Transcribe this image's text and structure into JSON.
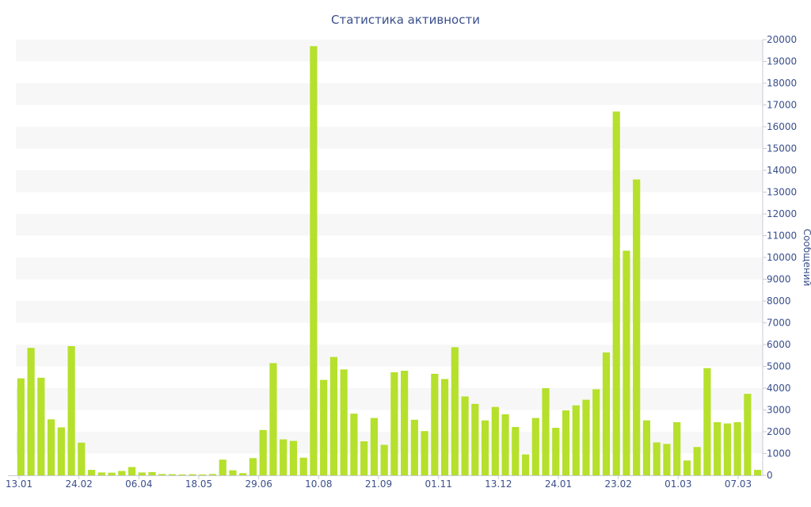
{
  "chart_data": {
    "type": "bar",
    "title": "Статистика активности",
    "ylabel": "Сообщений",
    "xlabel": "",
    "ylim": [
      0,
      20000
    ],
    "y_ticks": [
      0,
      1000,
      2000,
      3000,
      4000,
      5000,
      6000,
      7000,
      8000,
      9000,
      10000,
      11000,
      12000,
      13000,
      14000,
      15000,
      16000,
      17000,
      18000,
      19000,
      20000
    ],
    "x_tick_labels": [
      "13.01",
      "24.02",
      "06.04",
      "18.05",
      "29.06",
      "10.08",
      "21.09",
      "01.11",
      "13.12",
      "24.01",
      "23.02",
      "01.03",
      "07.03"
    ],
    "bar_color": "#b5e02c",
    "band_color": "#f7f7f7",
    "text_color": "#3a4f8c",
    "grid": "alternating horizontal bands",
    "y_axis_position": "right",
    "values": [
      4450,
      5850,
      4480,
      2570,
      2200,
      5930,
      1500,
      250,
      130,
      120,
      200,
      380,
      130,
      150,
      60,
      50,
      40,
      50,
      40,
      60,
      720,
      230,
      100,
      790,
      2080,
      5150,
      1650,
      1580,
      810,
      19700,
      4380,
      5430,
      4860,
      2830,
      1560,
      2630,
      1400,
      4730,
      4800,
      2550,
      2030,
      4660,
      4420,
      5880,
      3620,
      3280,
      2520,
      3140,
      2800,
      2220,
      960,
      2630,
      4000,
      2180,
      2980,
      3210,
      3470,
      3950,
      5640,
      16700,
      10310,
      13580,
      2520,
      1510,
      1440,
      2440,
      680,
      1300,
      4920,
      2440,
      2380,
      2440,
      3740,
      250
    ]
  }
}
